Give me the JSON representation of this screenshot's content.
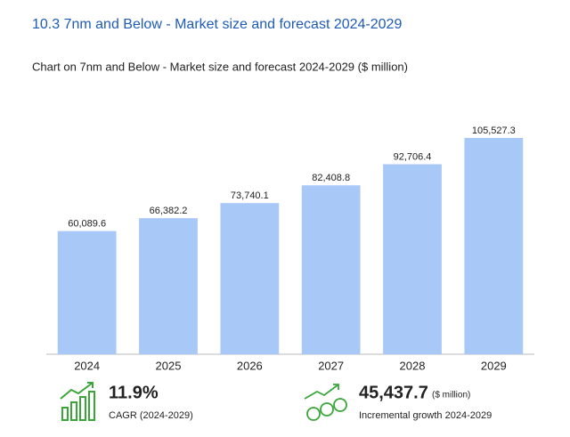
{
  "chart_data": {
    "type": "bar",
    "heading": "10.3 7nm and Below - Market size and forecast 2024-2029",
    "title": "Chart on 7nm and Below - Market size and forecast 2024-2029 ($ million)",
    "categories": [
      "2024",
      "2025",
      "2026",
      "2027",
      "2028",
      "2029"
    ],
    "values": [
      60089.6,
      66382.2,
      73740.1,
      82408.8,
      92706.4,
      105527.3
    ],
    "value_labels": [
      "60,089.6",
      "66,382.2",
      "73,740.1",
      "82,408.8",
      "92,706.4",
      "105,527.3"
    ],
    "color": "#a8c8f8"
  },
  "kpis": [
    {
      "value": "11.9%",
      "label": "CAGR (2024-2029)"
    },
    {
      "value": "45,437.7",
      "unit": "($ million)",
      "label": "Incremental growth 2024-2029"
    }
  ]
}
